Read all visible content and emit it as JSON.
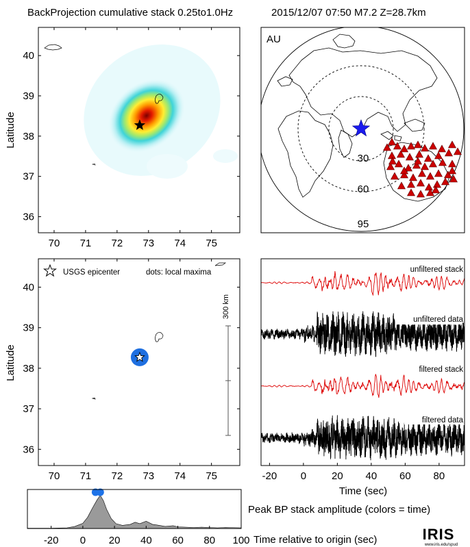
{
  "header": {
    "title": "BackProjection cumulative stack 0.25to1.0Hz",
    "event": "2015/12/07 07:50   M7.2  Z=28.7km"
  },
  "colors": {
    "trace_red": "#dd0000",
    "trace_black": "#000000",
    "station_red": "#cc0000",
    "epicenter_blue": "#1a1aee",
    "peak_blue": "#1e73e8",
    "amplitude_fill": "#9a9a9a"
  },
  "chart_data": [
    {
      "id": "cumulative-stack-map",
      "type": "heatmap",
      "title": "BackProjection cumulative stack 0.25to1.0Hz",
      "ylabel": "Latitude",
      "xlim": [
        69.5,
        75.9
      ],
      "ylim": [
        35.6,
        40.7
      ],
      "xticks": [
        70,
        71,
        72,
        73,
        74,
        75
      ],
      "yticks": [
        36,
        37,
        38,
        39,
        40
      ],
      "peak": {
        "lon": 72.72,
        "lat": 38.27
      },
      "epicenter": {
        "lon": 72.72,
        "lat": 38.27,
        "marker": "star"
      },
      "colormap": "jet"
    },
    {
      "id": "array-map",
      "type": "scatter",
      "array_label": "AU",
      "projection": "azimuthal-equidistant",
      "distance_rings_deg": [
        "30",
        "60",
        "95"
      ],
      "epicenter_marker": "blue-star",
      "station_marker": "red-triangle"
    },
    {
      "id": "local-maxima-map",
      "type": "scatter",
      "ylabel": "Latitude",
      "legend": {
        "star_label": "USGS epicenter",
        "dots_label": "dots: local maxima"
      },
      "scale_bar": "300 km",
      "xlim": [
        69.5,
        75.9
      ],
      "ylim": [
        35.6,
        40.7
      ],
      "xticks": [
        70,
        71,
        72,
        73,
        74,
        75
      ],
      "yticks": [
        36,
        37,
        38,
        39,
        40
      ],
      "local_maxima": [
        {
          "lon": 72.72,
          "lat": 38.27
        }
      ],
      "epicenter": {
        "lon": 72.72,
        "lat": 38.27
      }
    },
    {
      "id": "seismograms",
      "type": "line",
      "xlabel": "Time (sec)",
      "xlim": [
        -25,
        95
      ],
      "xticks": [
        -20,
        0,
        20,
        40,
        60,
        80
      ],
      "traces": [
        {
          "label": "unfiltered stack",
          "style": "red-line"
        },
        {
          "label": "unfiltered data",
          "style": "black-band"
        },
        {
          "label": "filtered stack",
          "style": "red-line"
        },
        {
          "label": "filtered data",
          "style": "black-band"
        }
      ]
    },
    {
      "id": "peak-amplitude",
      "type": "area",
      "title": "Peak BP stack amplitude (colors = time)",
      "xlabel": "Time relative to origin (sec)",
      "xlim": [
        -35,
        100
      ],
      "xticks": [
        -20,
        0,
        20,
        40,
        60,
        80,
        100
      ],
      "x": [
        -35,
        -20,
        -10,
        -5,
        0,
        3,
        6,
        9,
        11,
        13,
        15,
        18,
        21,
        25,
        30,
        33,
        36,
        40,
        44,
        47,
        52,
        57,
        60,
        65,
        70,
        75,
        80,
        85,
        90,
        100
      ],
      "values": [
        0.01,
        0.01,
        0.02,
        0.06,
        0.15,
        0.32,
        0.58,
        0.82,
        0.95,
        0.8,
        0.55,
        0.28,
        0.14,
        0.09,
        0.12,
        0.18,
        0.14,
        0.21,
        0.12,
        0.1,
        0.06,
        0.08,
        0.05,
        0.04,
        0.03,
        0.04,
        0.03,
        0.02,
        0.03,
        0.02
      ],
      "peak_dots": [
        8,
        11
      ]
    }
  ],
  "footer": {
    "logo_text": "IRIS",
    "logo_url": "www.iris.edu/spud"
  }
}
